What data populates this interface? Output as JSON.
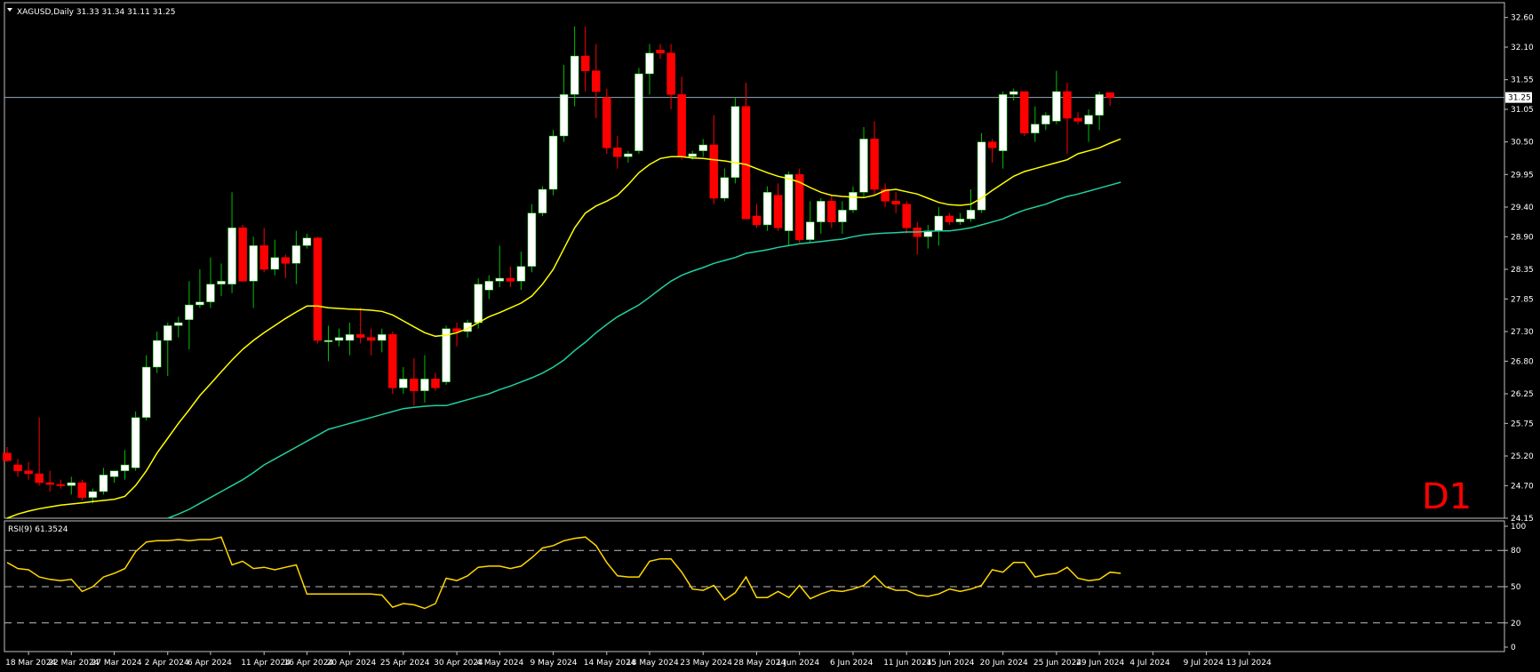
{
  "header": {
    "symbol_line": "XAGUSD,Daily  31.33 31.34 31.11 31.25"
  },
  "timeframe_badge": "D1",
  "rsi_label": "RSI(9) 61.3524",
  "current_price_label": "31.25",
  "colors": {
    "background": "#000000",
    "frame": "#c0c0c0",
    "bull_candle": "#ffffff",
    "bear_candle": "#ff0000",
    "wick_bull": "#00c000",
    "wick_bear": "#ff0000",
    "ma_fast": "#ffff00",
    "ma_slow": "#20d0a0",
    "rsi_line": "#ffd700",
    "current_price_line": "#9ab",
    "badge": "#ff0000"
  },
  "chart_data": [
    {
      "type": "candlestick",
      "title": "XAGUSD,Daily",
      "ohlc_header": {
        "open": 31.33,
        "high": 31.34,
        "low": 31.11,
        "close": 31.25
      },
      "ylim": [
        24.15,
        32.85
      ],
      "yticks": [
        "32.60",
        "32.10",
        "31.55",
        "31.05",
        "30.50",
        "29.95",
        "29.40",
        "28.90",
        "28.35",
        "27.85",
        "27.30",
        "26.80",
        "26.25",
        "25.75",
        "25.20",
        "24.70",
        "24.15"
      ],
      "current_price": 31.25,
      "xtick_labels": [
        {
          "label": "18 Mar 2024",
          "index": 2
        },
        {
          "label": "22 Mar 2024",
          "index": 6
        },
        {
          "label": "27 Mar 2024",
          "index": 10
        },
        {
          "label": "2 Apr 2024",
          "index": 15
        },
        {
          "label": "6 Apr 2024",
          "index": 19
        },
        {
          "label": "11 Apr 2024",
          "index": 24
        },
        {
          "label": "16 Apr 2024",
          "index": 28
        },
        {
          "label": "20 Apr 2024",
          "index": 32
        },
        {
          "label": "25 Apr 2024",
          "index": 37
        },
        {
          "label": "30 Apr 2024",
          "index": 42
        },
        {
          "label": "4 May 2024",
          "index": 46
        },
        {
          "label": "9 May 2024",
          "index": 51
        },
        {
          "label": "14 May 2024",
          "index": 56
        },
        {
          "label": "18 May 2024",
          "index": 60
        },
        {
          "label": "23 May 2024",
          "index": 65
        },
        {
          "label": "28 May 2024",
          "index": 70
        },
        {
          "label": "1 Jun 2024",
          "index": 74
        },
        {
          "label": "6 Jun 2024",
          "index": 79
        },
        {
          "label": "11 Jun 2024",
          "index": 84
        },
        {
          "label": "15 Jun 2024",
          "index": 88
        },
        {
          "label": "20 Jun 2024",
          "index": 93
        },
        {
          "label": "25 Jun 2024",
          "index": 98
        },
        {
          "label": "29 Jun 2024",
          "index": 102
        },
        {
          "label": "4 Jul 2024",
          "index": 107
        },
        {
          "label": "9 Jul 2024",
          "index": 112
        },
        {
          "label": "13 Jul 2024",
          "index": 116
        }
      ],
      "candles": [
        {
          "o": 25.25,
          "h": 25.35,
          "l": 25.1,
          "c": 25.12
        },
        {
          "o": 25.05,
          "h": 25.15,
          "l": 24.85,
          "c": 24.95
        },
        {
          "o": 24.95,
          "h": 25.1,
          "l": 24.8,
          "c": 24.9
        },
        {
          "o": 24.9,
          "h": 25.85,
          "l": 24.7,
          "c": 24.75
        },
        {
          "o": 24.75,
          "h": 24.95,
          "l": 24.6,
          "c": 24.72
        },
        {
          "o": 24.72,
          "h": 24.8,
          "l": 24.65,
          "c": 24.7
        },
        {
          "o": 24.7,
          "h": 24.85,
          "l": 24.55,
          "c": 24.75
        },
        {
          "o": 24.75,
          "h": 24.8,
          "l": 24.45,
          "c": 24.5
        },
        {
          "o": 24.5,
          "h": 24.65,
          "l": 24.4,
          "c": 24.6
        },
        {
          "o": 24.6,
          "h": 25.0,
          "l": 24.55,
          "c": 24.88
        },
        {
          "o": 24.85,
          "h": 24.95,
          "l": 24.75,
          "c": 24.95
        },
        {
          "o": 24.95,
          "h": 25.3,
          "l": 24.8,
          "c": 25.05
        },
        {
          "o": 25.0,
          "h": 25.95,
          "l": 24.95,
          "c": 25.85
        },
        {
          "o": 25.85,
          "h": 26.9,
          "l": 25.8,
          "c": 26.7
        },
        {
          "o": 26.7,
          "h": 27.3,
          "l": 26.6,
          "c": 27.15
        },
        {
          "o": 27.15,
          "h": 27.45,
          "l": 26.55,
          "c": 27.4
        },
        {
          "o": 27.4,
          "h": 27.55,
          "l": 27.2,
          "c": 27.45
        },
        {
          "o": 27.5,
          "h": 28.15,
          "l": 27.0,
          "c": 27.75
        },
        {
          "o": 27.75,
          "h": 28.35,
          "l": 27.7,
          "c": 27.8
        },
        {
          "o": 27.8,
          "h": 28.55,
          "l": 27.7,
          "c": 28.1
        },
        {
          "o": 28.1,
          "h": 28.45,
          "l": 27.9,
          "c": 28.15
        },
        {
          "o": 28.1,
          "h": 29.65,
          "l": 27.95,
          "c": 29.05
        },
        {
          "o": 29.05,
          "h": 29.1,
          "l": 28.15,
          "c": 28.15
        },
        {
          "o": 28.15,
          "h": 28.9,
          "l": 27.7,
          "c": 28.75
        },
        {
          "o": 28.75,
          "h": 29.05,
          "l": 28.3,
          "c": 28.35
        },
        {
          "o": 28.35,
          "h": 28.85,
          "l": 28.25,
          "c": 28.55
        },
        {
          "o": 28.55,
          "h": 28.6,
          "l": 28.2,
          "c": 28.45
        },
        {
          "o": 28.45,
          "h": 29.0,
          "l": 28.1,
          "c": 28.75
        },
        {
          "o": 28.75,
          "h": 28.95,
          "l": 28.7,
          "c": 28.88
        },
        {
          "o": 28.88,
          "h": 28.9,
          "l": 27.1,
          "c": 27.15
        },
        {
          "o": 27.15,
          "h": 27.4,
          "l": 26.8,
          "c": 27.15
        },
        {
          "o": 27.15,
          "h": 27.35,
          "l": 27.05,
          "c": 27.2
        },
        {
          "o": 27.15,
          "h": 27.45,
          "l": 26.9,
          "c": 27.25
        },
        {
          "o": 27.25,
          "h": 27.7,
          "l": 27.1,
          "c": 27.2
        },
        {
          "o": 27.2,
          "h": 27.35,
          "l": 26.9,
          "c": 27.15
        },
        {
          "o": 27.15,
          "h": 27.35,
          "l": 26.95,
          "c": 27.25
        },
        {
          "o": 27.25,
          "h": 27.3,
          "l": 26.25,
          "c": 26.35
        },
        {
          "o": 26.35,
          "h": 26.7,
          "l": 26.25,
          "c": 26.5
        },
        {
          "o": 26.5,
          "h": 26.85,
          "l": 26.05,
          "c": 26.3
        },
        {
          "o": 26.3,
          "h": 26.9,
          "l": 26.1,
          "c": 26.5
        },
        {
          "o": 26.5,
          "h": 26.6,
          "l": 26.3,
          "c": 26.35
        },
        {
          "o": 26.45,
          "h": 27.4,
          "l": 26.4,
          "c": 27.35
        },
        {
          "o": 27.35,
          "h": 27.45,
          "l": 27.05,
          "c": 27.3
        },
        {
          "o": 27.3,
          "h": 27.5,
          "l": 27.2,
          "c": 27.45
        },
        {
          "o": 27.45,
          "h": 28.2,
          "l": 27.35,
          "c": 28.1
        },
        {
          "o": 28.0,
          "h": 28.25,
          "l": 27.85,
          "c": 28.15
        },
        {
          "o": 28.15,
          "h": 28.75,
          "l": 28.05,
          "c": 28.2
        },
        {
          "o": 28.2,
          "h": 28.4,
          "l": 28.05,
          "c": 28.15
        },
        {
          "o": 28.15,
          "h": 28.65,
          "l": 28.0,
          "c": 28.4
        },
        {
          "o": 28.4,
          "h": 29.45,
          "l": 28.3,
          "c": 29.3
        },
        {
          "o": 29.3,
          "h": 29.75,
          "l": 29.25,
          "c": 29.7
        },
        {
          "o": 29.7,
          "h": 30.7,
          "l": 29.6,
          "c": 30.6
        },
        {
          "o": 30.6,
          "h": 31.8,
          "l": 30.5,
          "c": 31.3
        },
        {
          "o": 31.3,
          "h": 32.45,
          "l": 31.1,
          "c": 31.95
        },
        {
          "o": 31.95,
          "h": 32.45,
          "l": 31.35,
          "c": 31.7
        },
        {
          "o": 31.7,
          "h": 32.15,
          "l": 30.9,
          "c": 31.35
        },
        {
          "o": 31.25,
          "h": 31.4,
          "l": 30.3,
          "c": 30.4
        },
        {
          "o": 30.4,
          "h": 30.6,
          "l": 30.05,
          "c": 30.25
        },
        {
          "o": 30.25,
          "h": 30.35,
          "l": 30.15,
          "c": 30.3
        },
        {
          "o": 30.35,
          "h": 31.75,
          "l": 30.3,
          "c": 31.65
        },
        {
          "o": 31.65,
          "h": 32.15,
          "l": 31.3,
          "c": 32.0
        },
        {
          "o": 32.05,
          "h": 32.15,
          "l": 31.9,
          "c": 32.0
        },
        {
          "o": 32.0,
          "h": 32.15,
          "l": 31.05,
          "c": 31.3
        },
        {
          "o": 31.3,
          "h": 31.6,
          "l": 30.2,
          "c": 30.25
        },
        {
          "o": 30.25,
          "h": 30.35,
          "l": 30.2,
          "c": 30.3
        },
        {
          "o": 30.35,
          "h": 30.55,
          "l": 30.25,
          "c": 30.45
        },
        {
          "o": 30.45,
          "h": 30.95,
          "l": 29.45,
          "c": 29.55
        },
        {
          "o": 29.55,
          "h": 30.05,
          "l": 29.5,
          "c": 29.9
        },
        {
          "o": 29.9,
          "h": 31.25,
          "l": 29.8,
          "c": 31.1
        },
        {
          "o": 31.1,
          "h": 31.5,
          "l": 29.2,
          "c": 29.2
        },
        {
          "o": 29.25,
          "h": 29.45,
          "l": 29.05,
          "c": 29.1
        },
        {
          "o": 29.1,
          "h": 29.75,
          "l": 29.0,
          "c": 29.65
        },
        {
          "o": 29.6,
          "h": 29.8,
          "l": 29.0,
          "c": 29.05
        },
        {
          "o": 29.0,
          "h": 30.0,
          "l": 28.75,
          "c": 29.95
        },
        {
          "o": 29.95,
          "h": 30.05,
          "l": 28.8,
          "c": 28.85
        },
        {
          "o": 28.85,
          "h": 29.5,
          "l": 28.8,
          "c": 29.15
        },
        {
          "o": 29.15,
          "h": 29.55,
          "l": 28.95,
          "c": 29.5
        },
        {
          "o": 29.5,
          "h": 29.6,
          "l": 29.05,
          "c": 29.15
        },
        {
          "o": 29.15,
          "h": 29.5,
          "l": 28.95,
          "c": 29.35
        },
        {
          "o": 29.35,
          "h": 29.75,
          "l": 29.3,
          "c": 29.65
        },
        {
          "o": 29.65,
          "h": 30.75,
          "l": 29.55,
          "c": 30.55
        },
        {
          "o": 30.55,
          "h": 30.85,
          "l": 29.6,
          "c": 29.7
        },
        {
          "o": 29.7,
          "h": 29.8,
          "l": 29.4,
          "c": 29.5
        },
        {
          "o": 29.5,
          "h": 29.65,
          "l": 29.3,
          "c": 29.45
        },
        {
          "o": 29.45,
          "h": 29.5,
          "l": 28.95,
          "c": 29.05
        },
        {
          "o": 29.05,
          "h": 29.15,
          "l": 28.6,
          "c": 28.9
        },
        {
          "o": 28.9,
          "h": 29.1,
          "l": 28.7,
          "c": 29.0
        },
        {
          "o": 29.0,
          "h": 29.4,
          "l": 28.75,
          "c": 29.25
        },
        {
          "o": 29.25,
          "h": 29.3,
          "l": 29.1,
          "c": 29.15
        },
        {
          "o": 29.15,
          "h": 29.3,
          "l": 29.1,
          "c": 29.2
        },
        {
          "o": 29.2,
          "h": 29.7,
          "l": 29.15,
          "c": 29.35
        },
        {
          "o": 29.35,
          "h": 30.65,
          "l": 29.3,
          "c": 30.5
        },
        {
          "o": 30.5,
          "h": 30.55,
          "l": 30.15,
          "c": 30.4
        },
        {
          "o": 30.35,
          "h": 31.35,
          "l": 30.05,
          "c": 31.3
        },
        {
          "o": 31.3,
          "h": 31.4,
          "l": 31.2,
          "c": 31.35
        },
        {
          "o": 31.35,
          "h": 31.35,
          "l": 30.6,
          "c": 30.65
        },
        {
          "o": 30.65,
          "h": 31.1,
          "l": 30.5,
          "c": 30.8
        },
        {
          "o": 30.8,
          "h": 31.0,
          "l": 30.7,
          "c": 30.95
        },
        {
          "o": 30.85,
          "h": 31.7,
          "l": 30.8,
          "c": 31.35
        },
        {
          "o": 31.35,
          "h": 31.5,
          "l": 30.3,
          "c": 30.9
        },
        {
          "o": 30.9,
          "h": 31.0,
          "l": 30.8,
          "c": 30.85
        },
        {
          "o": 30.8,
          "h": 31.05,
          "l": 30.5,
          "c": 30.95
        },
        {
          "o": 30.95,
          "h": 31.35,
          "l": 30.7,
          "c": 31.3
        },
        {
          "o": 31.33,
          "h": 31.34,
          "l": 31.11,
          "c": 31.25
        }
      ],
      "ma_fast": [
        24.15,
        24.22,
        24.27,
        24.31,
        24.34,
        24.37,
        24.39,
        24.41,
        24.43,
        24.45,
        24.47,
        24.52,
        24.7,
        24.95,
        25.25,
        25.5,
        25.75,
        25.98,
        26.22,
        26.42,
        26.62,
        26.82,
        27.0,
        27.15,
        27.28,
        27.4,
        27.52,
        27.63,
        27.73,
        27.73,
        27.7,
        27.69,
        27.68,
        27.67,
        27.66,
        27.64,
        27.58,
        27.48,
        27.38,
        27.28,
        27.22,
        27.24,
        27.28,
        27.35,
        27.45,
        27.55,
        27.62,
        27.7,
        27.78,
        27.9,
        28.1,
        28.35,
        28.7,
        29.05,
        29.3,
        29.42,
        29.5,
        29.6,
        29.78,
        29.98,
        30.12,
        30.22,
        30.25,
        30.25,
        30.23,
        30.22,
        30.2,
        30.18,
        30.15,
        30.12,
        30.05,
        29.98,
        29.92,
        29.88,
        29.82,
        29.73,
        29.65,
        29.6,
        29.58,
        29.57,
        29.56,
        29.6,
        29.68,
        29.7,
        29.66,
        29.62,
        29.55,
        29.48,
        29.44,
        29.43,
        29.45,
        29.55,
        29.68,
        29.8,
        29.92,
        30.0,
        30.05,
        30.1,
        30.15,
        30.2,
        30.3,
        30.35,
        30.4,
        30.48,
        30.55
      ],
      "ma_slow": [
        23.5,
        23.5,
        23.5,
        23.5,
        23.5,
        23.5,
        23.5,
        23.5,
        23.5,
        23.5,
        23.5,
        23.5,
        23.5,
        23.5,
        23.5,
        24.15,
        24.22,
        24.3,
        24.4,
        24.5,
        24.6,
        24.7,
        24.8,
        24.92,
        25.05,
        25.15,
        25.25,
        25.35,
        25.45,
        25.55,
        25.65,
        25.7,
        25.75,
        25.8,
        25.85,
        25.9,
        25.95,
        26.0,
        26.02,
        26.04,
        26.05,
        26.05,
        26.1,
        26.15,
        26.2,
        26.25,
        26.32,
        26.38,
        26.45,
        26.52,
        26.6,
        26.7,
        26.82,
        26.98,
        27.12,
        27.28,
        27.42,
        27.55,
        27.65,
        27.75,
        27.88,
        28.02,
        28.15,
        28.25,
        28.32,
        28.38,
        28.45,
        28.5,
        28.55,
        28.62,
        28.65,
        28.68,
        28.72,
        28.75,
        28.78,
        28.8,
        28.82,
        28.84,
        28.86,
        28.9,
        28.93,
        28.95,
        28.96,
        28.97,
        28.98,
        28.98,
        28.99,
        29.0,
        29.0,
        29.02,
        29.05,
        29.1,
        29.15,
        29.2,
        29.28,
        29.35,
        29.4,
        29.45,
        29.52,
        29.58,
        29.62,
        29.67,
        29.72,
        29.77,
        29.82
      ]
    },
    {
      "type": "line",
      "title": "RSI(9) 61.3524",
      "name": "RSI(9)",
      "ylim": [
        0,
        100
      ],
      "yticks": [
        "100",
        "80",
        "50",
        "20",
        "0"
      ],
      "levels": [
        80,
        50,
        20
      ],
      "values": [
        70,
        65,
        64,
        58,
        56,
        55,
        56,
        46,
        50,
        58,
        61,
        65,
        79,
        87,
        88,
        88,
        89,
        88,
        89,
        89,
        91,
        68,
        71,
        65,
        66,
        64,
        66,
        68,
        44,
        44,
        44,
        44,
        44,
        44,
        44,
        43,
        33,
        36,
        35,
        32,
        36,
        57,
        55,
        59,
        66,
        67,
        67,
        65,
        67,
        74,
        82,
        84,
        88,
        90,
        91,
        84,
        70,
        59,
        58,
        58,
        71,
        73,
        73,
        62,
        48,
        47,
        51,
        39,
        45,
        58,
        41,
        41,
        46,
        41,
        51,
        40,
        44,
        47,
        46,
        48,
        51,
        59,
        50,
        47,
        47,
        43,
        42,
        44,
        48,
        46,
        48,
        51,
        64,
        62,
        70,
        70,
        58,
        60,
        61,
        66,
        57,
        55,
        56,
        62,
        61
      ]
    }
  ]
}
